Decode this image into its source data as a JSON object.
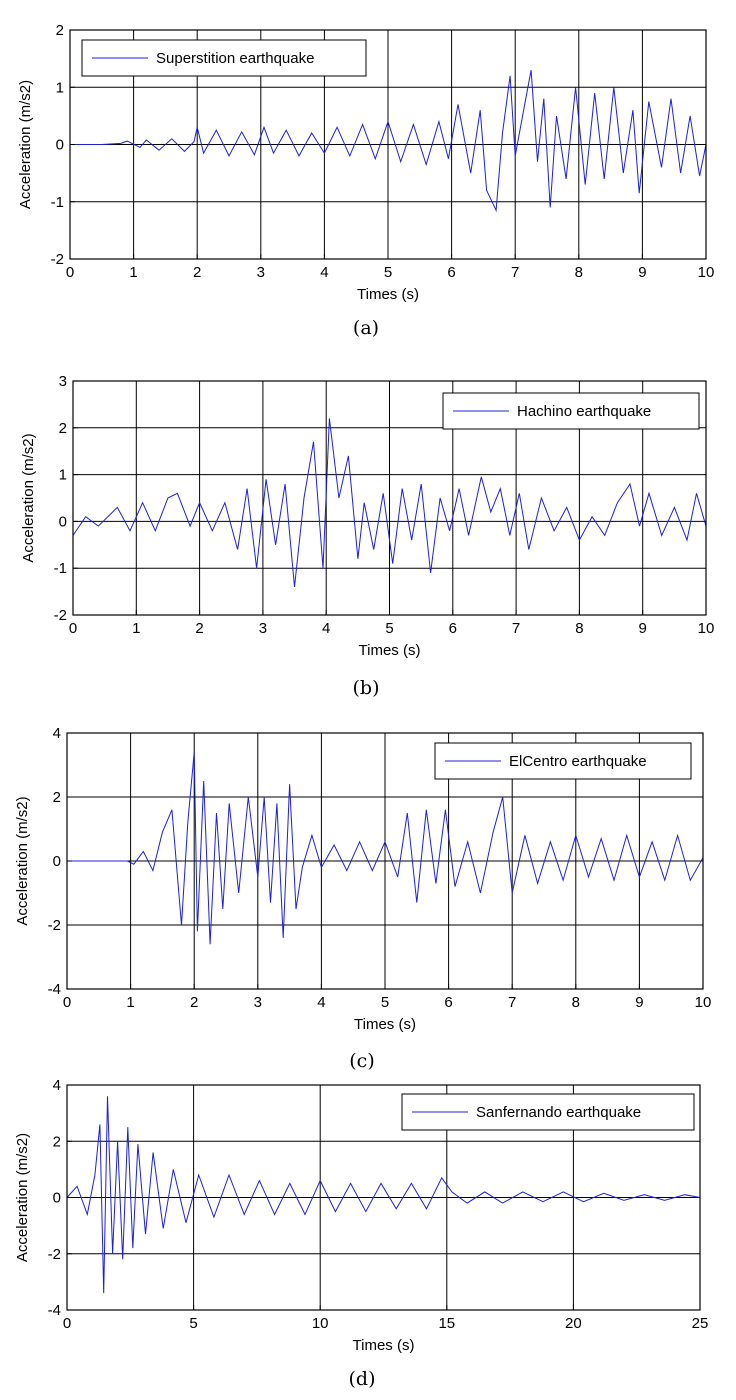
{
  "chart_data": [
    {
      "type": "line",
      "caption": "(a)",
      "xlabel": "Times (s)",
      "ylabel": "Acceleration (m/s2)",
      "xlim": [
        0,
        10
      ],
      "ylim": [
        -2,
        2
      ],
      "xticks": [
        0,
        1,
        2,
        3,
        4,
        5,
        6,
        7,
        8,
        9,
        10
      ],
      "yticks": [
        -2,
        -1,
        0,
        1,
        2
      ],
      "grid": true,
      "legend": "top-left",
      "line_color": "#1f1fd8",
      "series": [
        {
          "name": "Superstition earthquake",
          "x": [
            0,
            0.5,
            0.8,
            0.9,
            1.1,
            1.2,
            1.4,
            1.6,
            1.8,
            1.95,
            2.0,
            2.1,
            2.3,
            2.5,
            2.7,
            2.9,
            3.05,
            3.2,
            3.4,
            3.6,
            3.8,
            4.0,
            4.2,
            4.4,
            4.6,
            4.8,
            5.0,
            5.2,
            5.4,
            5.6,
            5.8,
            5.95,
            6.1,
            6.3,
            6.45,
            6.55,
            6.7,
            6.8,
            6.92,
            7.0,
            7.15,
            7.25,
            7.35,
            7.45,
            7.55,
            7.65,
            7.8,
            7.95,
            8.1,
            8.25,
            8.4,
            8.55,
            8.7,
            8.85,
            8.95,
            9.1,
            9.3,
            9.45,
            9.6,
            9.75,
            9.9,
            10.0
          ],
          "values": [
            0,
            0,
            0.02,
            0.06,
            -0.05,
            0.08,
            -0.1,
            0.1,
            -0.12,
            0.05,
            0.3,
            -0.15,
            0.25,
            -0.2,
            0.22,
            -0.18,
            0.3,
            -0.15,
            0.25,
            -0.2,
            0.2,
            -0.15,
            0.3,
            -0.2,
            0.35,
            -0.25,
            0.4,
            -0.3,
            0.35,
            -0.35,
            0.4,
            -0.25,
            0.7,
            -0.5,
            0.6,
            -0.8,
            -1.15,
            0.2,
            1.2,
            -0.2,
            0.7,
            1.3,
            -0.3,
            0.8,
            -1.1,
            0.5,
            -0.6,
            1.0,
            -0.7,
            0.9,
            -0.6,
            1.0,
            -0.5,
            0.6,
            -0.85,
            0.75,
            -0.4,
            0.8,
            -0.5,
            0.5,
            -0.55,
            0.0
          ]
        }
      ]
    },
    {
      "type": "line",
      "caption": "(b)",
      "xlabel": "Times (s)",
      "ylabel": "Acceleration (m/s2)",
      "xlim": [
        0,
        10
      ],
      "ylim": [
        -2,
        3
      ],
      "xticks": [
        0,
        1,
        2,
        3,
        4,
        5,
        6,
        7,
        8,
        9,
        10
      ],
      "yticks": [
        -2,
        -1,
        0,
        1,
        2,
        3
      ],
      "grid": true,
      "legend": "top-right",
      "line_color": "#1f1fd8",
      "series": [
        {
          "name": "Hachino earthquake",
          "x": [
            0,
            0.2,
            0.4,
            0.7,
            0.9,
            1.1,
            1.3,
            1.5,
            1.65,
            1.85,
            2.0,
            2.2,
            2.4,
            2.6,
            2.75,
            2.9,
            3.05,
            3.2,
            3.35,
            3.5,
            3.65,
            3.8,
            3.95,
            4.05,
            4.2,
            4.35,
            4.5,
            4.6,
            4.75,
            4.9,
            5.05,
            5.2,
            5.35,
            5.5,
            5.65,
            5.8,
            5.95,
            6.1,
            6.25,
            6.45,
            6.6,
            6.75,
            6.9,
            7.05,
            7.2,
            7.4,
            7.6,
            7.8,
            8.0,
            8.2,
            8.4,
            8.6,
            8.8,
            8.95,
            9.1,
            9.3,
            9.5,
            9.7,
            9.85,
            10.0
          ],
          "values": [
            -0.3,
            0.1,
            -0.1,
            0.3,
            -0.2,
            0.4,
            -0.2,
            0.5,
            0.6,
            -0.1,
            0.4,
            -0.2,
            0.4,
            -0.6,
            0.7,
            -1.0,
            0.9,
            -0.5,
            0.8,
            -1.4,
            0.5,
            1.7,
            -1.0,
            2.2,
            0.5,
            1.4,
            -0.8,
            0.4,
            -0.6,
            0.6,
            -0.9,
            0.7,
            -0.4,
            0.8,
            -1.1,
            0.5,
            -0.2,
            0.7,
            -0.3,
            0.95,
            0.2,
            0.7,
            -0.3,
            0.6,
            -0.6,
            0.5,
            -0.2,
            0.3,
            -0.4,
            0.1,
            -0.3,
            0.4,
            0.8,
            -0.1,
            0.6,
            -0.3,
            0.3,
            -0.4,
            0.6,
            -0.1
          ]
        }
      ]
    },
    {
      "type": "line",
      "caption": "(c)",
      "xlabel": "Times (s)",
      "ylabel": "Acceleration (m/s2)",
      "xlim": [
        0,
        10
      ],
      "ylim": [
        -4,
        4
      ],
      "xticks": [
        0,
        1,
        2,
        3,
        4,
        5,
        6,
        7,
        8,
        9,
        10
      ],
      "yticks": [
        -4,
        -2,
        0,
        2,
        4
      ],
      "grid": true,
      "legend": "top-right",
      "line_color": "#1f1fd8",
      "series": [
        {
          "name": "ElCentro earthquake",
          "x": [
            0,
            0.95,
            1.05,
            1.2,
            1.35,
            1.5,
            1.65,
            1.8,
            1.9,
            2.0,
            2.05,
            2.15,
            2.25,
            2.35,
            2.45,
            2.55,
            2.7,
            2.85,
            3.0,
            3.1,
            3.2,
            3.3,
            3.4,
            3.5,
            3.6,
            3.7,
            3.85,
            4.0,
            4.2,
            4.4,
            4.6,
            4.8,
            5.0,
            5.2,
            5.35,
            5.5,
            5.65,
            5.8,
            5.95,
            6.1,
            6.3,
            6.5,
            6.7,
            6.85,
            7.0,
            7.2,
            7.4,
            7.6,
            7.8,
            8.0,
            8.2,
            8.4,
            8.6,
            8.8,
            9.0,
            9.2,
            9.4,
            9.6,
            9.8,
            10.0
          ],
          "values": [
            0,
            0,
            -0.1,
            0.3,
            -0.3,
            0.9,
            1.6,
            -2.0,
            1.2,
            3.4,
            -2.2,
            2.5,
            -2.6,
            1.5,
            -1.5,
            1.8,
            -1.0,
            2.0,
            -0.5,
            2.0,
            -1.3,
            1.8,
            -2.4,
            2.4,
            -1.5,
            -0.2,
            0.8,
            -0.2,
            0.5,
            -0.3,
            0.6,
            -0.3,
            0.6,
            -0.5,
            1.5,
            -1.3,
            1.6,
            -0.7,
            1.6,
            -0.8,
            0.6,
            -1.0,
            0.9,
            2.0,
            -1.0,
            0.8,
            -0.7,
            0.6,
            -0.6,
            0.8,
            -0.5,
            0.7,
            -0.6,
            0.8,
            -0.5,
            0.6,
            -0.6,
            0.8,
            -0.6,
            0.1
          ]
        }
      ]
    },
    {
      "type": "line",
      "caption": "(d)",
      "xlabel": "Times (s)",
      "ylabel": "Acceleration (m/s2)",
      "xlim": [
        0,
        25
      ],
      "ylim": [
        -4,
        4
      ],
      "xticks": [
        0,
        5,
        10,
        15,
        20,
        25
      ],
      "yticks": [
        -4,
        -2,
        0,
        2,
        4
      ],
      "grid": true,
      "legend": "top-right",
      "line_color": "#1f1fd8",
      "series": [
        {
          "name": "Sanfernando earthquake",
          "x": [
            0,
            0.4,
            0.8,
            1.1,
            1.3,
            1.45,
            1.6,
            1.8,
            2.0,
            2.2,
            2.4,
            2.6,
            2.8,
            3.1,
            3.4,
            3.8,
            4.2,
            4.7,
            5.2,
            5.8,
            6.4,
            7.0,
            7.6,
            8.2,
            8.8,
            9.4,
            10.0,
            10.6,
            11.2,
            11.8,
            12.4,
            13.0,
            13.6,
            14.2,
            14.8,
            15.2,
            15.8,
            16.5,
            17.2,
            18.0,
            18.8,
            19.6,
            20.4,
            21.2,
            22.0,
            22.8,
            23.6,
            24.4,
            25.0
          ],
          "values": [
            0,
            0.4,
            -0.6,
            0.8,
            2.6,
            -3.4,
            3.6,
            -2.0,
            2.0,
            -2.2,
            2.5,
            -1.8,
            1.9,
            -1.3,
            1.6,
            -1.1,
            1.0,
            -0.9,
            0.8,
            -0.7,
            0.8,
            -0.6,
            0.6,
            -0.6,
            0.5,
            -0.6,
            0.6,
            -0.5,
            0.5,
            -0.5,
            0.5,
            -0.4,
            0.5,
            -0.4,
            0.7,
            0.2,
            -0.2,
            0.2,
            -0.2,
            0.2,
            -0.15,
            0.2,
            -0.15,
            0.15,
            -0.1,
            0.1,
            -0.1,
            0.1,
            0
          ]
        }
      ]
    }
  ]
}
